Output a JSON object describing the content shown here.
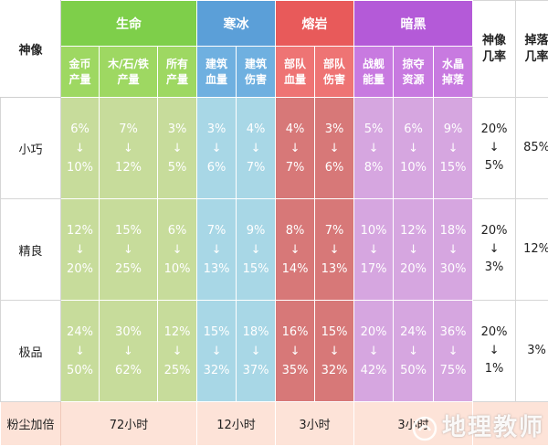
{
  "header": {
    "corner": "神像",
    "groups": [
      {
        "label": "生命",
        "color": "#7ecf4a"
      },
      {
        "label": "寒冰",
        "color": "#5b9fd8"
      },
      {
        "label": "熔岩",
        "color": "#e85a5a"
      },
      {
        "label": "暗黑",
        "color": "#b45ad8"
      }
    ],
    "sub_columns": [
      {
        "l1": "金币",
        "l2": "产量"
      },
      {
        "l1": "木/石/铁",
        "l2": "产量"
      },
      {
        "l1": "所有",
        "l2": "产量"
      },
      {
        "l1": "建筑",
        "l2": "血量"
      },
      {
        "l1": "建筑",
        "l2": "伤害"
      },
      {
        "l1": "部队",
        "l2": "血量"
      },
      {
        "l1": "部队",
        "l2": "伤害"
      },
      {
        "l1": "战舰",
        "l2": "能量"
      },
      {
        "l1": "掠夺",
        "l2": "资源"
      },
      {
        "l1": "水晶",
        "l2": "掉落"
      }
    ],
    "statue_rate": {
      "l1": "神像",
      "l2": "几率"
    },
    "drop_rate": {
      "l1": "掉落",
      "l2": "几率"
    }
  },
  "colors": {
    "life_body": "#c7dc9b",
    "ice_body": "#a8d7e6",
    "lava_body": "#d77878",
    "dark_body": "#d6a6e0",
    "footer_bg": "#fde3d8",
    "arrow": "↓"
  },
  "rows": [
    {
      "label": "小巧",
      "cells": [
        {
          "from": "6%",
          "to": "10%"
        },
        {
          "from": "7%",
          "to": "12%"
        },
        {
          "from": "3%",
          "to": "5%"
        },
        {
          "from": "3%",
          "to": "6%"
        },
        {
          "from": "4%",
          "to": "7%"
        },
        {
          "from": "4%",
          "to": "7%"
        },
        {
          "from": "3%",
          "to": "6%"
        },
        {
          "from": "5%",
          "to": "8%"
        },
        {
          "from": "6%",
          "to": "10%"
        },
        {
          "from": "9%",
          "to": "15%"
        }
      ],
      "statue_rate": {
        "from": "20%",
        "to": "5%"
      },
      "drop_rate": "85%"
    },
    {
      "label": "精良",
      "cells": [
        {
          "from": "12%",
          "to": "20%"
        },
        {
          "from": "15%",
          "to": "25%"
        },
        {
          "from": "6%",
          "to": "10%"
        },
        {
          "from": "7%",
          "to": "13%"
        },
        {
          "from": "9%",
          "to": "15%"
        },
        {
          "from": "8%",
          "to": "14%"
        },
        {
          "from": "7%",
          "to": "13%"
        },
        {
          "from": "10%",
          "to": "17%"
        },
        {
          "from": "12%",
          "to": "20%"
        },
        {
          "from": "18%",
          "to": "30%"
        }
      ],
      "statue_rate": {
        "from": "20%",
        "to": "3%"
      },
      "drop_rate": "12%"
    },
    {
      "label": "极品",
      "cells": [
        {
          "from": "24%",
          "to": "50%"
        },
        {
          "from": "30%",
          "to": "62%"
        },
        {
          "from": "12%",
          "to": "25%"
        },
        {
          "from": "15%",
          "to": "32%"
        },
        {
          "from": "18%",
          "to": "37%"
        },
        {
          "from": "16%",
          "to": "35%"
        },
        {
          "from": "15%",
          "to": "32%"
        },
        {
          "from": "20%",
          "to": "42%"
        },
        {
          "from": "24%",
          "to": "50%"
        },
        {
          "from": "36%",
          "to": "75%"
        }
      ],
      "statue_rate": {
        "from": "20%",
        "to": "1%"
      },
      "drop_rate": "3%"
    }
  ],
  "footer": {
    "label": "粉尘加倍",
    "life": "72小时",
    "ice": "12小时",
    "lava": "3小时",
    "dark": "3小时"
  },
  "watermark": "地理教师"
}
